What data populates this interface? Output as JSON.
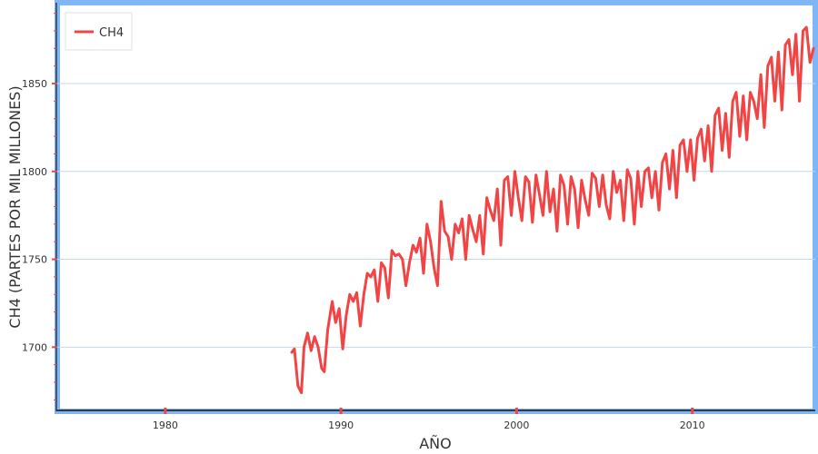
{
  "chart_data": {
    "type": "line",
    "title": "",
    "xlabel": "AÑO",
    "ylabel": "CH4 (PARTES POR MIL MILLONES)",
    "xlim": [
      1973.8,
      2017.0
    ],
    "ylim": [
      1664,
      1896
    ],
    "x_ticks": [
      1980,
      1990,
      2000,
      2010
    ],
    "y_ticks": [
      1700,
      1750,
      1800,
      1850
    ],
    "grid": "horizontal",
    "legend": {
      "position": "top-left",
      "entries": [
        "CH4"
      ]
    },
    "series": [
      {
        "name": "CH4",
        "color": "#f24444",
        "x": [
          1987.2,
          1987.35,
          1987.55,
          1987.75,
          1987.9,
          1988.1,
          1988.3,
          1988.5,
          1988.7,
          1988.9,
          1989.05,
          1989.25,
          1989.5,
          1989.7,
          1989.9,
          1990.1,
          1990.3,
          1990.5,
          1990.7,
          1990.9,
          1991.1,
          1991.3,
          1991.5,
          1991.7,
          1991.9,
          1992.1,
          1992.3,
          1992.5,
          1992.7,
          1992.9,
          1993.1,
          1993.3,
          1993.5,
          1993.7,
          1993.9,
          1994.1,
          1994.3,
          1994.5,
          1994.7,
          1994.9,
          1995.1,
          1995.3,
          1995.5,
          1995.7,
          1995.9,
          1996.1,
          1996.3,
          1996.5,
          1996.7,
          1996.9,
          1997.1,
          1997.3,
          1997.5,
          1997.7,
          1997.9,
          1998.1,
          1998.3,
          1998.5,
          1998.7,
          1998.9,
          1999.1,
          1999.3,
          1999.5,
          1999.7,
          1999.9,
          2000.1,
          2000.3,
          2000.5,
          2000.7,
          2000.9,
          2001.1,
          2001.3,
          2001.5,
          2001.7,
          2001.9,
          2002.1,
          2002.3,
          2002.5,
          2002.7,
          2002.9,
          2003.1,
          2003.3,
          2003.5,
          2003.7,
          2003.9,
          2004.1,
          2004.3,
          2004.5,
          2004.7,
          2004.9,
          2005.1,
          2005.3,
          2005.5,
          2005.7,
          2005.9,
          2006.1,
          2006.3,
          2006.5,
          2006.7,
          2006.9,
          2007.1,
          2007.3,
          2007.5,
          2007.7,
          2007.9,
          2008.1,
          2008.3,
          2008.5,
          2008.7,
          2008.9,
          2009.1,
          2009.3,
          2009.5,
          2009.7,
          2009.9,
          2010.1,
          2010.3,
          2010.5,
          2010.7,
          2010.9,
          2011.1,
          2011.3,
          2011.5,
          2011.7,
          2011.9,
          2012.1,
          2012.3,
          2012.5,
          2012.7,
          2012.9,
          2013.1,
          2013.3,
          2013.5,
          2013.7,
          2013.9,
          2014.1,
          2014.3,
          2014.5,
          2014.7,
          2014.9,
          2015.1,
          2015.3,
          2015.5,
          2015.7,
          2015.9,
          2016.1,
          2016.3,
          2016.5,
          2016.7,
          2016.9
        ],
        "y": [
          1697,
          1699,
          1678,
          1674,
          1700,
          1708,
          1698,
          1706,
          1700,
          1688,
          1686,
          1710,
          1726,
          1714,
          1722,
          1699,
          1718,
          1730,
          1726,
          1731,
          1712,
          1730,
          1742,
          1740,
          1744,
          1726,
          1748,
          1745,
          1728,
          1755,
          1752,
          1753,
          1750,
          1735,
          1748,
          1758,
          1754,
          1762,
          1742,
          1770,
          1760,
          1745,
          1735,
          1783,
          1766,
          1763,
          1750,
          1770,
          1765,
          1773,
          1750,
          1775,
          1767,
          1760,
          1775,
          1753,
          1785,
          1778,
          1772,
          1790,
          1758,
          1795,
          1797,
          1775,
          1800,
          1785,
          1772,
          1797,
          1794,
          1771,
          1798,
          1787,
          1775,
          1800,
          1777,
          1790,
          1766,
          1798,
          1792,
          1770,
          1797,
          1790,
          1768,
          1795,
          1784,
          1775,
          1799,
          1796,
          1780,
          1798,
          1781,
          1773,
          1800,
          1788,
          1795,
          1772,
          1801,
          1796,
          1770,
          1800,
          1780,
          1800,
          1802,
          1785,
          1800,
          1778,
          1805,
          1810,
          1790,
          1812,
          1785,
          1815,
          1818,
          1800,
          1818,
          1795,
          1819,
          1824,
          1806,
          1826,
          1800,
          1832,
          1836,
          1812,
          1833,
          1808,
          1840,
          1845,
          1820,
          1843,
          1818,
          1845,
          1840,
          1830,
          1855,
          1825,
          1860,
          1865,
          1840,
          1868,
          1835,
          1872,
          1875,
          1855,
          1878,
          1840,
          1880,
          1882,
          1862,
          1870
        ]
      }
    ]
  }
}
